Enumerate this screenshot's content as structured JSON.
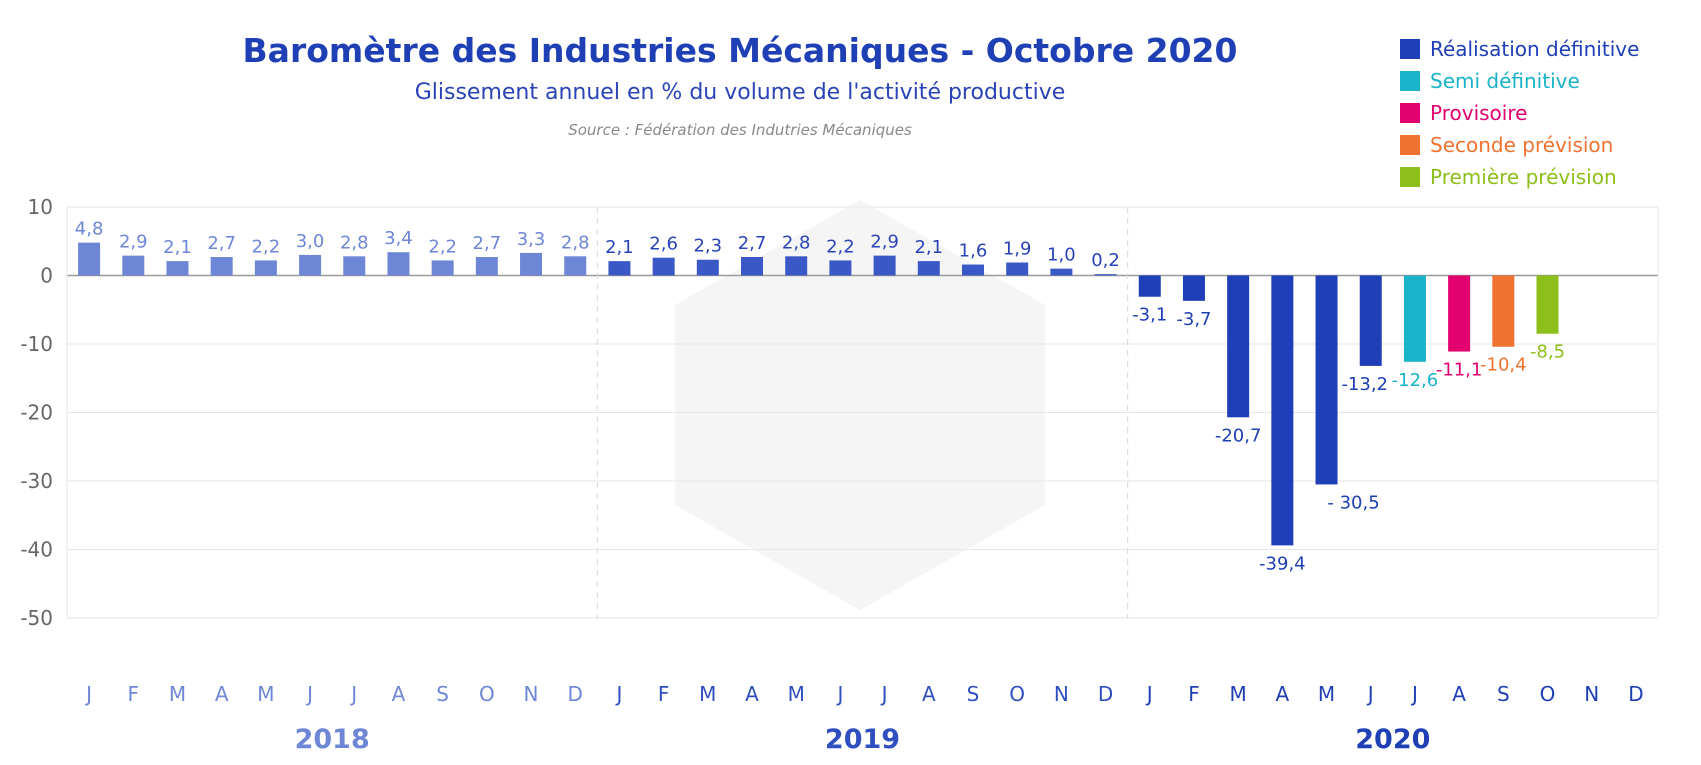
{
  "chart_data": {
    "type": "bar",
    "title": "Baromètre des Industries Mécaniques - Octobre 2020",
    "subtitle": "Glissement annuel en % du volume de l'activité productive",
    "source": "Source : Fédération des Indutries Mécaniques",
    "ylim": [
      -50,
      10
    ],
    "yticks": [
      "10",
      "0",
      "-10",
      "-20",
      "-30",
      "-40",
      "-50"
    ],
    "yticks_values": [
      10,
      0,
      -10,
      -20,
      -30,
      -40,
      -50
    ],
    "months": [
      "J",
      "F",
      "M",
      "A",
      "M",
      "J",
      "J",
      "A",
      "S",
      "O",
      "N",
      "D"
    ],
    "years": [
      "2018",
      "2019",
      "2020"
    ],
    "year_colors": [
      "#6e86d6",
      "#2f4fc0",
      "#1f3fb4"
    ],
    "status_colors": {
      "2018": "#6e86d6",
      "2019": "#3a58c6",
      "definitive": "#1e3fb8",
      "semi": "#1ab3c9",
      "provisional": "#e3006f",
      "second": "#f07230",
      "first": "#8cbf1a"
    },
    "legend": [
      {
        "label": "Réalisation définitive",
        "color": "#1e3fb8"
      },
      {
        "label": "Semi définitive",
        "color": "#1ab3c9"
      },
      {
        "label": "Provisoire",
        "color": "#e3006f"
      },
      {
        "label": "Seconde prévision",
        "color": "#f07230"
      },
      {
        "label": "Première prévision",
        "color": "#8cbf1a"
      }
    ],
    "series": [
      {
        "values": [
          4.8,
          2.9,
          2.1,
          2.7,
          2.2,
          3.0,
          2.8,
          3.4,
          2.2,
          2.7,
          3.3,
          2.8
        ],
        "labels": [
          "4,8",
          "2,9",
          "2,1",
          "2,7",
          "2,2",
          "3,0",
          "2,8",
          "3,4",
          "2,2",
          "2,7",
          "3,3",
          "2,8"
        ],
        "status": [
          "2018",
          "2018",
          "2018",
          "2018",
          "2018",
          "2018",
          "2018",
          "2018",
          "2018",
          "2018",
          "2018",
          "2018"
        ]
      },
      {
        "values": [
          2.1,
          2.6,
          2.3,
          2.7,
          2.8,
          2.2,
          2.9,
          2.1,
          1.6,
          1.9,
          1.0,
          0.2
        ],
        "labels": [
          "2,1",
          "2,6",
          "2,3",
          "2,7",
          "2,8",
          "2,2",
          "2,9",
          "2,1",
          "1,6",
          "1,9",
          "1,0",
          "0,2"
        ],
        "status": [
          "2019",
          "2019",
          "2019",
          "2019",
          "2019",
          "2019",
          "2019",
          "2019",
          "2019",
          "2019",
          "2019",
          "2019"
        ]
      },
      {
        "values": [
          -3.1,
          -3.7,
          -20.7,
          -39.4,
          -30.5,
          -13.2,
          -12.6,
          -11.1,
          -10.4,
          -8.5,
          null,
          null
        ],
        "labels": [
          "-3,1",
          "-3,7",
          "-20,7",
          "-39,4",
          "- 30,5",
          "-13,2",
          "-12,6",
          "-11,1",
          "-10,4",
          "-8,5",
          "",
          ""
        ],
        "status": [
          "definitive",
          "definitive",
          "definitive",
          "definitive",
          "definitive",
          "definitive",
          "semi",
          "provisional",
          "second",
          "first",
          "",
          ""
        ]
      }
    ]
  }
}
